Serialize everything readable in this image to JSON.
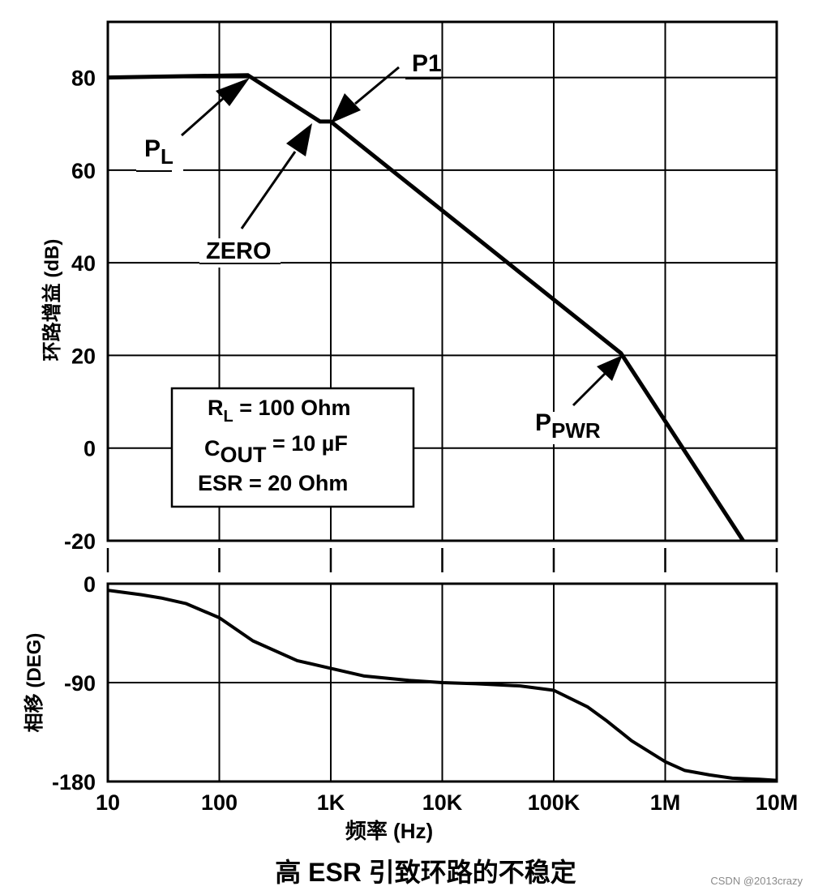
{
  "chart_data": [
    {
      "type": "line",
      "name": "gain",
      "ylabel": "环路增益 (dB)",
      "x_scale": "log",
      "xlim": [
        10,
        10000000
      ],
      "ylim": [
        -20,
        92
      ],
      "yticks": [
        80,
        60,
        40,
        20,
        0,
        -20
      ],
      "ytick_labels": [
        "80",
        "60",
        "40",
        "20",
        "0",
        "-20"
      ],
      "grid": true,
      "series": [
        {
          "name": "loop gain",
          "x": [
            10,
            180,
            800,
            1000,
            400000,
            5000000
          ],
          "y": [
            80,
            80.5,
            70.5,
            70.5,
            20.5,
            -20
          ]
        }
      ],
      "annotations": [
        {
          "id": "pl",
          "main": "P",
          "sub": "L",
          "x": 180,
          "y": 80.5
        },
        {
          "id": "p1",
          "main": "P1",
          "sub": "",
          "x": 1000,
          "y": 70.5
        },
        {
          "id": "zero",
          "main": "ZERO",
          "sub": "",
          "x": 800,
          "y": 70.5
        },
        {
          "id": "ppwr",
          "main": "P",
          "sub": "PWR",
          "x": 400000,
          "y": 20.5
        }
      ],
      "legend_box": {
        "location": "lower-left",
        "lines": [
          {
            "main": "R",
            "sub": "L",
            "rest": " = 100 Ohm"
          },
          {
            "main": "C",
            "sub": "OUT",
            "rest": " = 10 µF"
          },
          {
            "main": "ESR = 20 Ohm",
            "sub": "",
            "rest": ""
          }
        ]
      }
    },
    {
      "type": "line",
      "name": "phase",
      "ylabel": "相移 (DEG)",
      "x_scale": "log",
      "xlim": [
        10,
        10000000
      ],
      "ylim": [
        -180,
        0
      ],
      "yticks": [
        0,
        -90,
        -180
      ],
      "ytick_labels": [
        "0",
        "-90",
        "-180"
      ],
      "grid": true,
      "xticks": [
        10,
        100,
        1000,
        10000,
        100000,
        1000000,
        10000000
      ],
      "xtick_labels": [
        "10",
        "100",
        "1K",
        "10K",
        "100K",
        "1M",
        "10M"
      ],
      "xlabel": "频率 (Hz)",
      "series": [
        {
          "name": "phase shift",
          "x": [
            10,
            20,
            30,
            50,
            100,
            200,
            500,
            1000,
            2000,
            5000,
            10000,
            20000,
            50000,
            100000,
            200000,
            300000,
            500000,
            1000000,
            1500000,
            2500000,
            4000000,
            7000000,
            10000000
          ],
          "y": [
            -6,
            -10,
            -13,
            -18,
            -31,
            -52,
            -70,
            -77,
            -84,
            -88,
            -90,
            -91,
            -93,
            -97,
            -112,
            -125,
            -143,
            -162,
            -170,
            -174,
            -177,
            -178,
            -179
          ]
        }
      ]
    }
  ],
  "caption": "高 ESR 引致环路的不稳定",
  "watermark": "CSDN @2013crazy"
}
